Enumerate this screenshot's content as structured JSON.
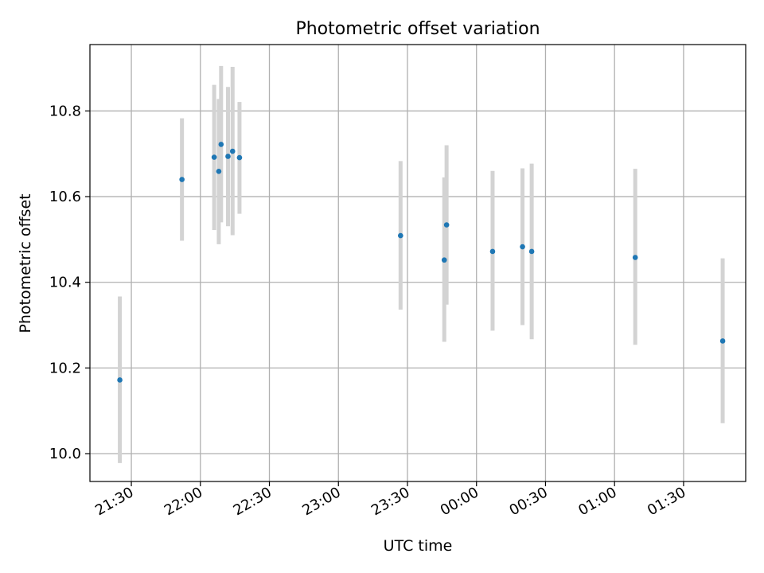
{
  "chart_data": {
    "type": "scatter",
    "title": "Photometric offset variation",
    "xlabel": "UTC time",
    "ylabel": "Photometric offset",
    "xlim": [
      "21:12",
      "01:57"
    ],
    "ylim": [
      9.935,
      10.955
    ],
    "grid": true,
    "error_bars": true,
    "x_ticks": [
      "21:30",
      "22:00",
      "22:30",
      "23:00",
      "23:30",
      "00:00",
      "00:30",
      "01:00",
      "01:30"
    ],
    "y_ticks": [
      "10.0",
      "10.2",
      "10.4",
      "10.6",
      "10.8"
    ],
    "points": [
      {
        "x": "21:25",
        "y": 10.172,
        "ylo": 9.978,
        "yhi": 10.367
      },
      {
        "x": "21:52",
        "y": 10.64,
        "ylo": 10.497,
        "yhi": 10.783
      },
      {
        "x": "22:06",
        "y": 10.692,
        "ylo": 10.522,
        "yhi": 10.861
      },
      {
        "x": "22:08",
        "y": 10.659,
        "ylo": 10.489,
        "yhi": 10.828
      },
      {
        "x": "22:09",
        "y": 10.722,
        "ylo": 10.54,
        "yhi": 10.905
      },
      {
        "x": "22:12",
        "y": 10.694,
        "ylo": 10.531,
        "yhi": 10.856
      },
      {
        "x": "22:14",
        "y": 10.706,
        "ylo": 10.51,
        "yhi": 10.903
      },
      {
        "x": "22:17",
        "y": 10.691,
        "ylo": 10.56,
        "yhi": 10.821
      },
      {
        "x": "23:27",
        "y": 10.509,
        "ylo": 10.336,
        "yhi": 10.683
      },
      {
        "x": "23:46",
        "y": 10.452,
        "ylo": 10.261,
        "yhi": 10.645
      },
      {
        "x": "23:47",
        "y": 10.534,
        "ylo": 10.348,
        "yhi": 10.72
      },
      {
        "x": "00:07",
        "y": 10.472,
        "ylo": 10.287,
        "yhi": 10.66
      },
      {
        "x": "00:20",
        "y": 10.483,
        "ylo": 10.3,
        "yhi": 10.666
      },
      {
        "x": "00:24",
        "y": 10.472,
        "ylo": 10.267,
        "yhi": 10.677
      },
      {
        "x": "01:09",
        "y": 10.458,
        "ylo": 10.254,
        "yhi": 10.665
      },
      {
        "x": "01:47",
        "y": 10.263,
        "ylo": 10.071,
        "yhi": 10.456
      }
    ],
    "colors": {
      "point": "#1f77b4",
      "errorbar": "#d3d3d3",
      "grid": "#b0b0b0",
      "axis": "#000000"
    }
  }
}
